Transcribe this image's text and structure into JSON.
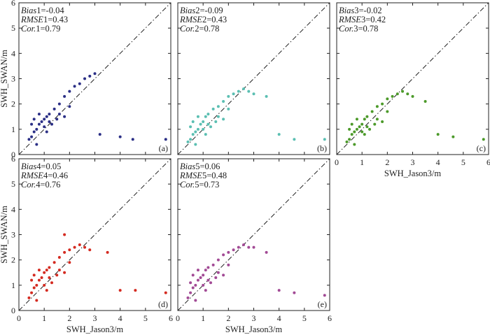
{
  "chart_data": [
    {
      "type": "scatter",
      "panel_label": "(a)",
      "color": "#2b2f86",
      "stats": {
        "bias_var": "Bias",
        "bias_idx": "1",
        "bias_val": "=-0.04",
        "rmse_var": "RMSE",
        "rmse_idx": "1",
        "rmse_val": "=0.43",
        "cor_var": "Cor.",
        "cor_idx": "1",
        "cor_val": "=0.79"
      },
      "ylabel": "SWH_SWAN/m",
      "xlabel": "",
      "xlim": [
        0,
        6
      ],
      "ylim": [
        0,
        6
      ],
      "xticks": [],
      "yticks": [
        "0",
        "1",
        "2",
        "3",
        "4",
        "5",
        "6"
      ],
      "points": [
        [
          0.4,
          0.6
        ],
        [
          0.5,
          0.7
        ],
        [
          0.6,
          0.9
        ],
        [
          0.7,
          1.0
        ],
        [
          0.8,
          1.2
        ],
        [
          0.9,
          1.3
        ],
        [
          1.0,
          1.4
        ],
        [
          1.1,
          1.5
        ],
        [
          1.2,
          1.6
        ],
        [
          1.4,
          1.8
        ],
        [
          1.6,
          2.0
        ],
        [
          1.8,
          2.3
        ],
        [
          2.0,
          2.5
        ],
        [
          2.2,
          2.7
        ],
        [
          2.4,
          2.8
        ],
        [
          2.6,
          3.0
        ],
        [
          2.8,
          3.1
        ],
        [
          3.0,
          3.2
        ],
        [
          0.6,
          1.4
        ],
        [
          0.8,
          1.6
        ],
        [
          1.0,
          1.1
        ],
        [
          1.2,
          1.3
        ],
        [
          0.5,
          1.2
        ],
        [
          1.6,
          1.6
        ],
        [
          1.8,
          1.5
        ],
        [
          2.0,
          1.9
        ],
        [
          0.7,
          0.4
        ],
        [
          1.1,
          0.9
        ],
        [
          1.3,
          1.2
        ],
        [
          1.5,
          1.4
        ],
        [
          3.2,
          0.8
        ],
        [
          4.0,
          0.7
        ],
        [
          4.5,
          0.6
        ],
        [
          5.8,
          0.6
        ]
      ]
    },
    {
      "type": "scatter",
      "panel_label": "(b)",
      "color": "#5bbfb2",
      "stats": {
        "bias_var": "Bias",
        "bias_idx": "2",
        "bias_val": "=-0.09",
        "rmse_var": "RMSE",
        "rmse_idx": "2",
        "rmse_val": "=0.43",
        "cor_var": "Cor.",
        "cor_idx": "2",
        "cor_val": "=0.78"
      },
      "ylabel": "",
      "xlabel": "",
      "xlim": [
        0,
        6
      ],
      "ylim": [
        0,
        6
      ],
      "xticks": [],
      "yticks": [],
      "points": [
        [
          0.4,
          0.5
        ],
        [
          0.5,
          0.6
        ],
        [
          0.6,
          0.8
        ],
        [
          0.7,
          0.9
        ],
        [
          0.8,
          1.0
        ],
        [
          0.9,
          1.2
        ],
        [
          1.0,
          1.3
        ],
        [
          1.1,
          1.5
        ],
        [
          1.2,
          1.6
        ],
        [
          1.4,
          1.8
        ],
        [
          1.6,
          1.9
        ],
        [
          1.8,
          2.1
        ],
        [
          2.0,
          2.3
        ],
        [
          2.2,
          2.4
        ],
        [
          2.4,
          2.5
        ],
        [
          2.6,
          2.6
        ],
        [
          2.8,
          2.5
        ],
        [
          3.0,
          2.4
        ],
        [
          0.6,
          1.3
        ],
        [
          0.8,
          1.5
        ],
        [
          1.0,
          1.0
        ],
        [
          1.2,
          1.2
        ],
        [
          0.5,
          1.1
        ],
        [
          1.6,
          1.5
        ],
        [
          1.8,
          1.4
        ],
        [
          2.0,
          1.8
        ],
        [
          0.7,
          0.4
        ],
        [
          1.1,
          0.8
        ],
        [
          1.3,
          1.1
        ],
        [
          1.5,
          1.3
        ],
        [
          3.5,
          2.3
        ],
        [
          4.0,
          0.8
        ],
        [
          4.6,
          0.6
        ],
        [
          5.8,
          0.6
        ]
      ]
    },
    {
      "type": "scatter",
      "panel_label": "(c)",
      "color": "#4c9a2a",
      "stats": {
        "bias_var": "Bias",
        "bias_idx": "3",
        "bias_val": "=-0.02",
        "rmse_var": "RMSE",
        "rmse_idx": "3",
        "rmse_val": "=0.42",
        "cor_var": "Cor.",
        "cor_idx": "3",
        "cor_val": "=0.78"
      },
      "ylabel": "",
      "xlabel": "SWH_Jason3/m",
      "xlim": [
        0,
        6
      ],
      "ylim": [
        0,
        6
      ],
      "xticks": [
        "0",
        "1",
        "2",
        "3",
        "4",
        "5",
        "6"
      ],
      "yticks": [],
      "points": [
        [
          0.4,
          0.5
        ],
        [
          0.5,
          0.6
        ],
        [
          0.6,
          0.8
        ],
        [
          0.7,
          0.9
        ],
        [
          0.8,
          1.0
        ],
        [
          0.9,
          1.1
        ],
        [
          1.0,
          1.2
        ],
        [
          1.1,
          1.4
        ],
        [
          1.2,
          1.5
        ],
        [
          1.4,
          1.7
        ],
        [
          1.6,
          1.9
        ],
        [
          1.8,
          2.0
        ],
        [
          2.0,
          2.2
        ],
        [
          2.2,
          2.3
        ],
        [
          2.4,
          2.4
        ],
        [
          2.6,
          2.5
        ],
        [
          2.8,
          2.4
        ],
        [
          3.0,
          2.3
        ],
        [
          0.6,
          1.2
        ],
        [
          0.8,
          1.4
        ],
        [
          1.0,
          0.9
        ],
        [
          1.2,
          1.1
        ],
        [
          0.5,
          1.0
        ],
        [
          1.6,
          1.4
        ],
        [
          1.8,
          1.3
        ],
        [
          2.0,
          1.7
        ],
        [
          0.7,
          0.4
        ],
        [
          1.1,
          0.8
        ],
        [
          1.3,
          1.0
        ],
        [
          1.5,
          1.2
        ],
        [
          3.5,
          2.1
        ],
        [
          4.0,
          0.8
        ],
        [
          4.6,
          0.7
        ],
        [
          5.8,
          0.6
        ]
      ]
    },
    {
      "type": "scatter",
      "panel_label": "(d)",
      "color": "#d42a20",
      "stats": {
        "bias_var": "Bias",
        "bias_idx": "4",
        "bias_val": "=0.05",
        "rmse_var": "RMSE",
        "rmse_idx": "4",
        "rmse_val": "=0.46",
        "cor_var": "Cor.",
        "cor_idx": "4",
        "cor_val": "=0.76"
      },
      "ylabel": "SWH_SWAN/m",
      "xlabel": "SWH_Jason3/m",
      "xlim": [
        0,
        6
      ],
      "ylim": [
        0,
        6
      ],
      "xticks": [
        "0",
        "1",
        "2",
        "3",
        "4",
        "5",
        "6"
      ],
      "yticks": [
        "0",
        "1",
        "2",
        "3",
        "4",
        "5",
        "6"
      ],
      "points": [
        [
          0.4,
          0.5
        ],
        [
          0.5,
          0.7
        ],
        [
          0.6,
          0.9
        ],
        [
          0.7,
          1.0
        ],
        [
          0.8,
          1.2
        ],
        [
          0.9,
          1.3
        ],
        [
          1.0,
          1.5
        ],
        [
          1.1,
          1.6
        ],
        [
          1.2,
          1.7
        ],
        [
          1.4,
          1.9
        ],
        [
          1.6,
          2.1
        ],
        [
          1.8,
          2.3
        ],
        [
          2.0,
          2.4
        ],
        [
          2.2,
          2.5
        ],
        [
          2.4,
          2.6
        ],
        [
          2.6,
          2.5
        ],
        [
          2.8,
          2.4
        ],
        [
          1.8,
          3.0
        ],
        [
          0.6,
          1.4
        ],
        [
          0.8,
          1.6
        ],
        [
          1.0,
          1.0
        ],
        [
          1.2,
          1.3
        ],
        [
          0.5,
          1.2
        ],
        [
          1.6,
          1.6
        ],
        [
          1.8,
          1.5
        ],
        [
          2.0,
          1.9
        ],
        [
          0.7,
          0.4
        ],
        [
          1.1,
          0.8
        ],
        [
          1.3,
          1.1
        ],
        [
          1.5,
          1.4
        ],
        [
          3.5,
          2.3
        ],
        [
          4.0,
          0.8
        ],
        [
          4.6,
          0.8
        ],
        [
          5.8,
          0.7
        ]
      ]
    },
    {
      "type": "scatter",
      "panel_label": "(e)",
      "color": "#a24a95",
      "stats": {
        "bias_var": "Bias",
        "bias_idx": "5",
        "bias_val": "=0.06",
        "rmse_var": "RMSE",
        "rmse_idx": "5",
        "rmse_val": "=0.48",
        "cor_var": "Cor.",
        "cor_idx": "5",
        "cor_val": "=0.73"
      },
      "ylabel": "",
      "xlabel": "SWH_Jason3/m",
      "xlim": [
        0,
        6
      ],
      "ylim": [
        0,
        6
      ],
      "xticks": [
        "0",
        "1",
        "2",
        "3",
        "4",
        "5",
        "6"
      ],
      "yticks": [],
      "points": [
        [
          0.4,
          0.5
        ],
        [
          0.5,
          0.7
        ],
        [
          0.6,
          0.9
        ],
        [
          0.7,
          1.0
        ],
        [
          0.8,
          1.2
        ],
        [
          0.9,
          1.3
        ],
        [
          1.0,
          1.4
        ],
        [
          1.1,
          1.6
        ],
        [
          1.2,
          1.7
        ],
        [
          1.4,
          1.8
        ],
        [
          1.6,
          2.0
        ],
        [
          1.8,
          2.2
        ],
        [
          2.0,
          2.3
        ],
        [
          2.2,
          2.4
        ],
        [
          2.4,
          2.5
        ],
        [
          2.6,
          2.6
        ],
        [
          2.8,
          2.5
        ],
        [
          3.0,
          2.5
        ],
        [
          0.6,
          1.4
        ],
        [
          0.8,
          1.6
        ],
        [
          1.0,
          1.0
        ],
        [
          1.2,
          1.2
        ],
        [
          0.5,
          1.1
        ],
        [
          1.6,
          1.5
        ],
        [
          1.8,
          1.4
        ],
        [
          2.0,
          1.8
        ],
        [
          0.7,
          0.4
        ],
        [
          1.1,
          0.8
        ],
        [
          1.3,
          1.1
        ],
        [
          1.5,
          1.3
        ],
        [
          3.5,
          2.3
        ],
        [
          4.0,
          0.8
        ],
        [
          4.6,
          0.7
        ],
        [
          5.8,
          0.6
        ]
      ]
    }
  ]
}
